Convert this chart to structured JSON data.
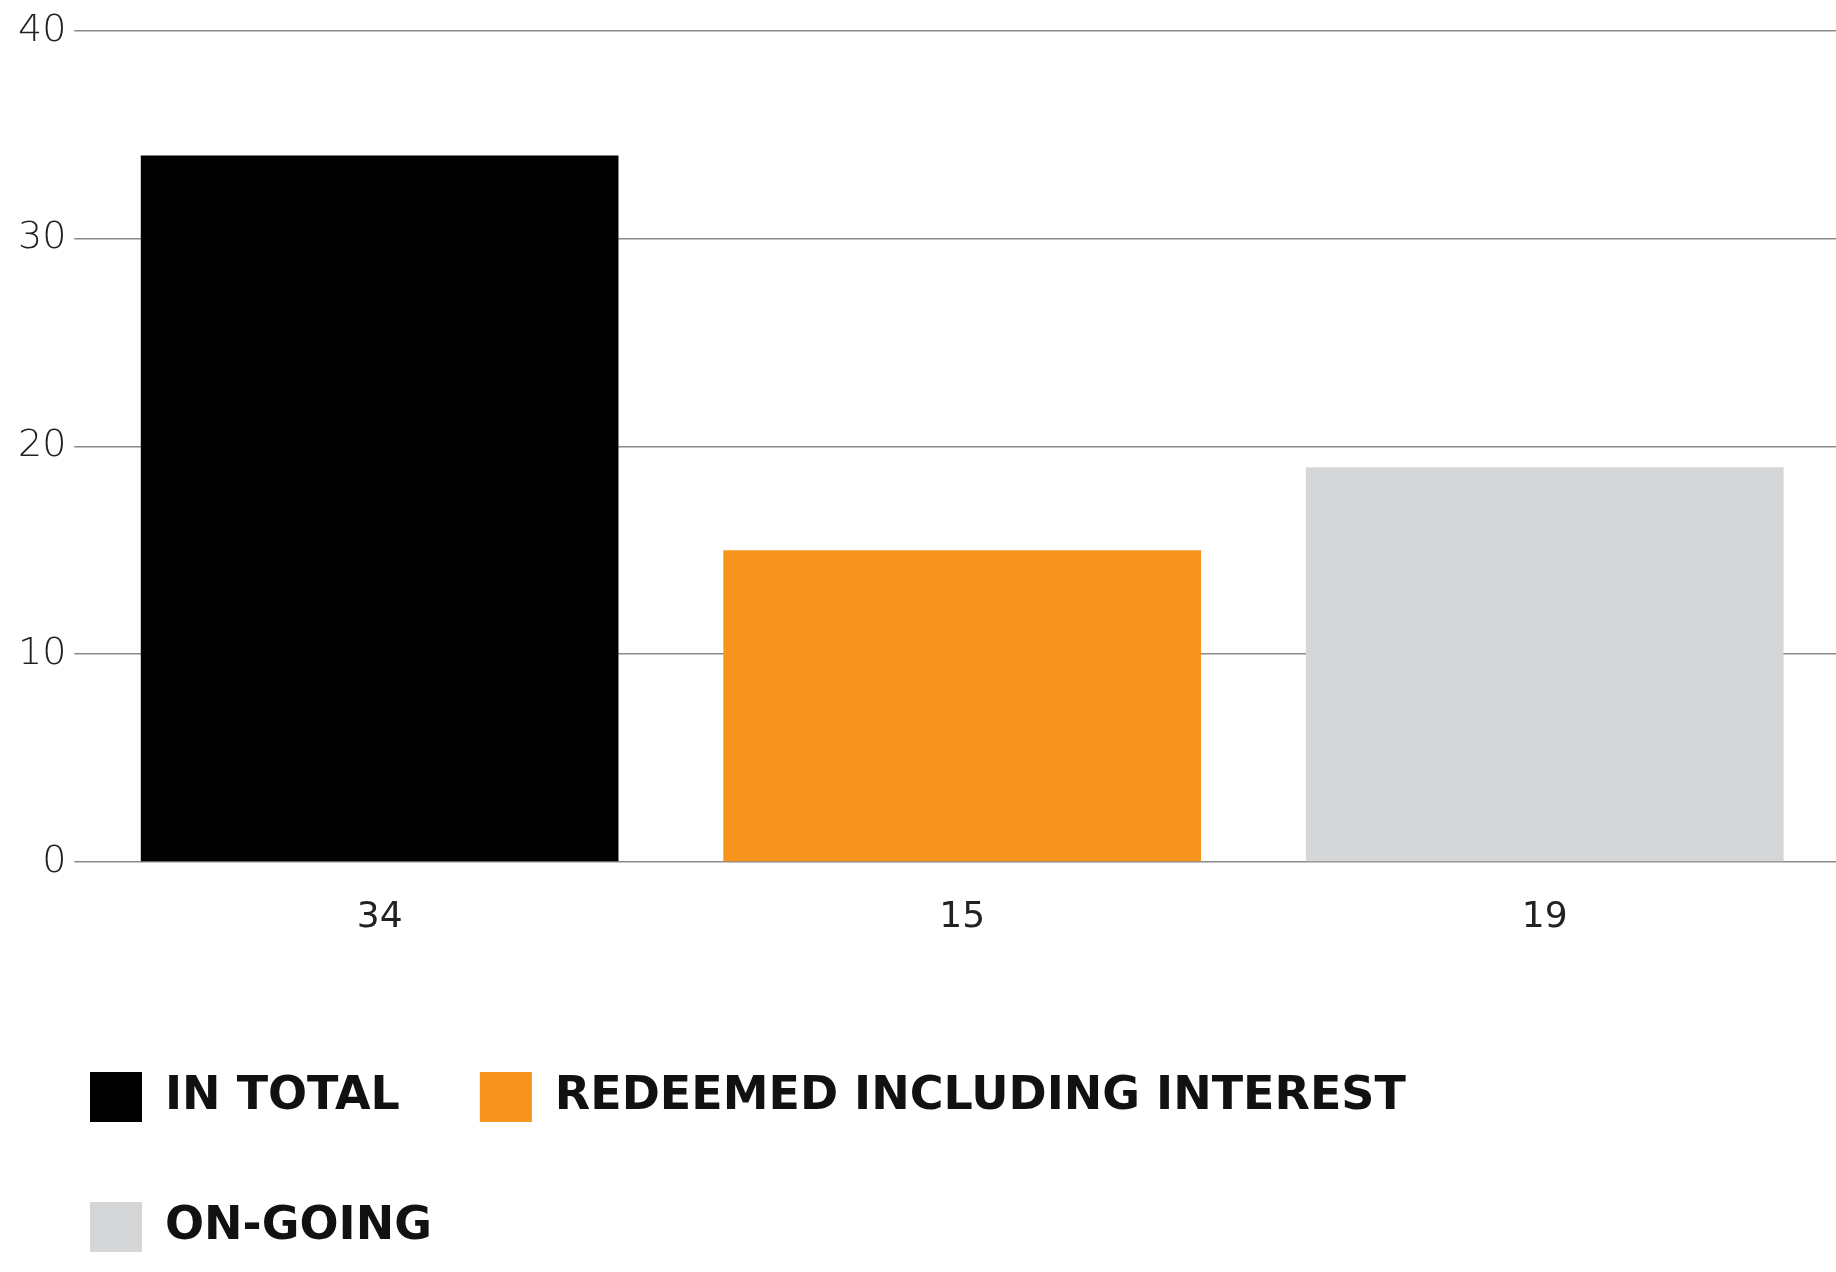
{
  "chart_data": {
    "type": "bar",
    "categories": [
      null,
      null,
      null
    ],
    "series": [
      {
        "name": "IN TOTAL",
        "color": "#000000",
        "values": [
          34,
          null,
          null
        ]
      },
      {
        "name": "REDEEMED INCLUDING INTEREST",
        "color": "#f7941e",
        "values": [
          null,
          15,
          null
        ]
      },
      {
        "name": "ON-GOING",
        "color": "#d5d6d8",
        "values": [
          null,
          null,
          19
        ]
      }
    ],
    "ylim": [
      0,
      40
    ],
    "yticks": [
      0,
      10,
      20,
      30,
      40
    ],
    "grid": "y",
    "legend": "bottom",
    "tick_labels": "y",
    "data_labels": true
  }
}
